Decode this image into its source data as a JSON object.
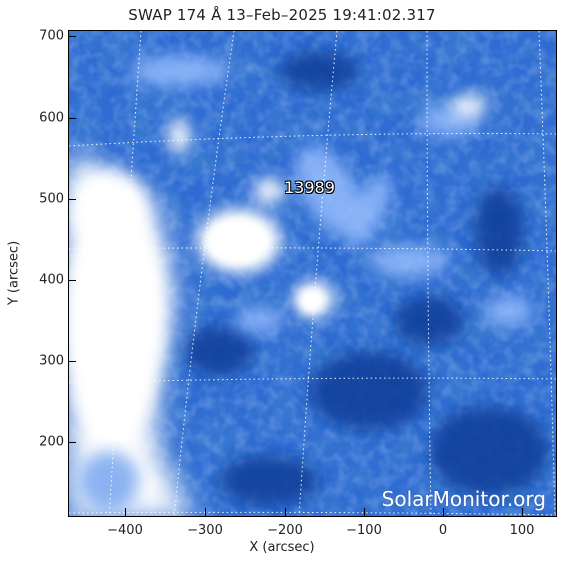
{
  "title": "SWAP 174 Å 13–Feb–2025 19:41:02.317",
  "xlabel": "X (arcsec)",
  "ylabel": "Y (arcsec)",
  "x_ticks": [
    "−400",
    "−300",
    "−200",
    "−100",
    "0",
    "100"
  ],
  "y_ticks": [
    "700",
    "600",
    "500",
    "400",
    "300",
    "200"
  ],
  "active_region_label": "13989",
  "watermark": "SolarMonitor.org",
  "colors": {
    "background_blue": "#2c6ad0",
    "bright": "#ffffff",
    "dark_blue": "#0d3f9c"
  }
}
